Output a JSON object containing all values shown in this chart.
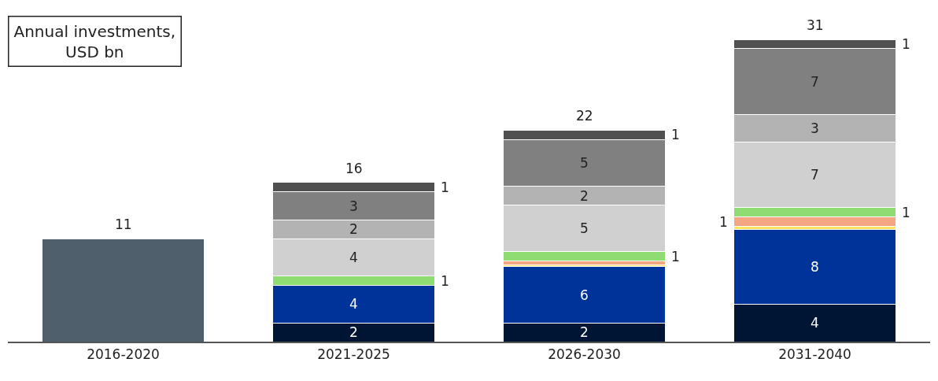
{
  "chart_data": {
    "type": "bar",
    "stacked": true,
    "title": "Annual investments, USD bn",
    "categories": [
      "2016-2020",
      "2021-2025",
      "2026-2030",
      "2031-2040"
    ],
    "series": [
      {
        "color": "#4f5f6b",
        "values": [
          11,
          null,
          null,
          null
        ]
      },
      {
        "color": "#001433",
        "values": [
          null,
          2,
          2,
          4
        ],
        "value_labels": [
          null,
          "2",
          "2",
          "4"
        ]
      },
      {
        "color": "#003399",
        "values": [
          null,
          4,
          6,
          8
        ],
        "value_labels": [
          null,
          "4",
          "6",
          "8"
        ]
      },
      {
        "color": "#ffe45c",
        "values": [
          null,
          null,
          0.2,
          0.3
        ]
      },
      {
        "color": "#f4a582",
        "values": [
          null,
          null,
          0.4,
          1
        ],
        "value_labels": [
          null,
          null,
          null,
          "1"
        ]
      },
      {
        "color": "#8fdc72",
        "values": [
          null,
          1,
          1,
          1
        ],
        "value_labels": [
          null,
          "1",
          "1",
          "1"
        ]
      },
      {
        "color": "#d0d0d0",
        "values": [
          null,
          4,
          5,
          7
        ],
        "value_labels": [
          null,
          "4",
          "5",
          "7"
        ]
      },
      {
        "color": "#b3b3b3",
        "values": [
          null,
          2,
          2,
          3
        ],
        "value_labels": [
          null,
          "2",
          "2",
          "3"
        ]
      },
      {
        "color": "#808080",
        "values": [
          null,
          3,
          5,
          7
        ],
        "value_labels": [
          null,
          "3",
          "5",
          "7"
        ]
      },
      {
        "color": "#505050",
        "values": [
          null,
          1,
          1,
          1
        ],
        "value_labels": [
          null,
          "1",
          "1",
          "1"
        ]
      }
    ],
    "totals": [
      "11",
      "16",
      "22",
      "31"
    ]
  }
}
